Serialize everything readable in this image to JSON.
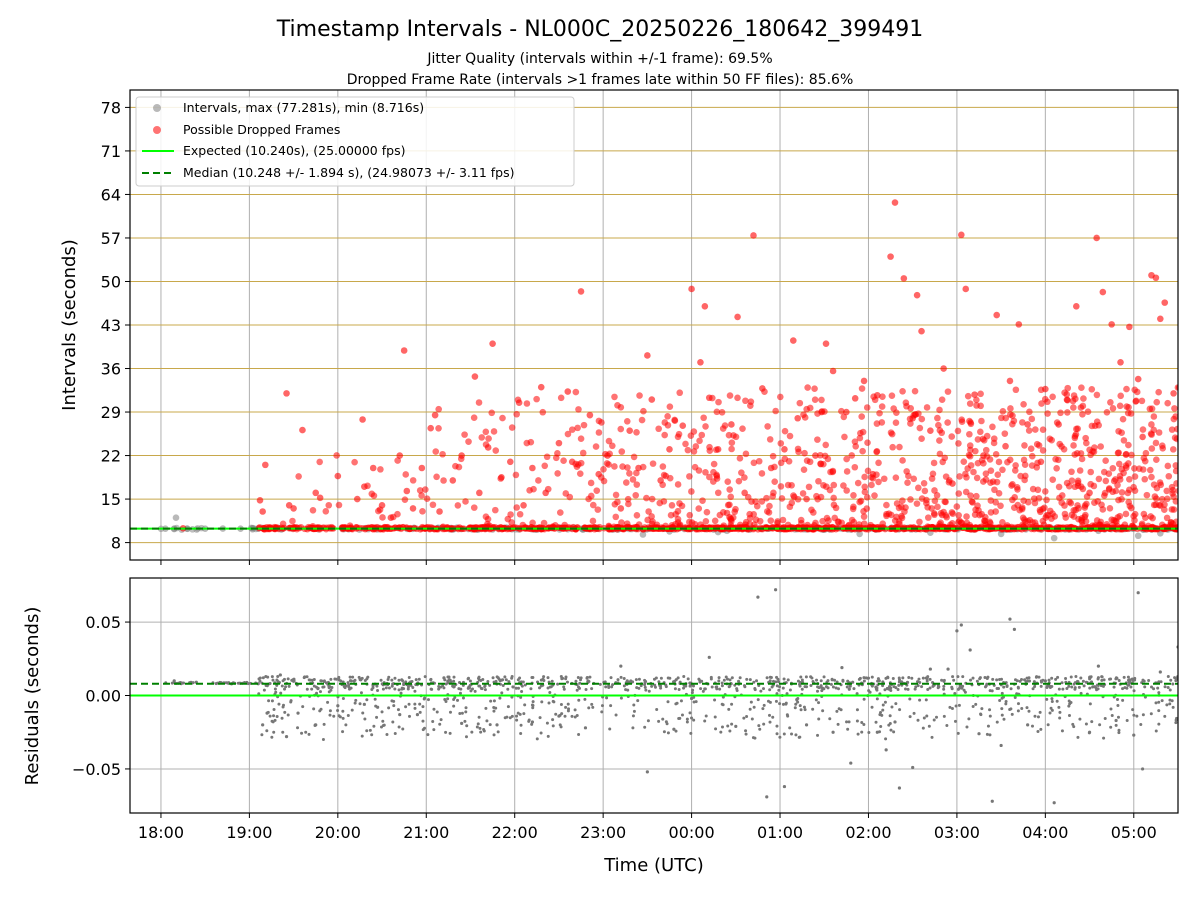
{
  "chart_data": [
    {
      "type": "scatter",
      "title": "Timestamp Intervals - NL000C_20250226_180642_399491",
      "subtitle_lines": [
        "Jitter Quality (intervals within +/-1 frame): 69.5%",
        "Dropped Frame Rate (intervals >1 frames late within 50 FF files): 85.6%"
      ],
      "xlabel": "",
      "ylabel": "Intervals (seconds)",
      "x_range_hours": [
        17.65,
        29.5
      ],
      "ylim": [
        5.2,
        80.8
      ],
      "yticks": [
        8,
        15,
        22,
        29,
        36,
        43,
        50,
        57,
        64,
        71,
        78
      ],
      "grid": true,
      "legend_position": "upper-left",
      "legend": [
        "Intervals, max (77.281s), min (8.716s)",
        "Possible Dropped Frames",
        "Expected (10.240s), (25.00000 fps)",
        "Median (10.248 +/- 1.894 s), (24.98073 +/- 3.11 fps)"
      ],
      "expected_interval": 10.24,
      "median_interval": 10.248,
      "colors": {
        "intervals": "#808080",
        "dropped": "#ff0000",
        "expected": "#00ff00",
        "median": "#008000",
        "hgrid": "#c8a84b",
        "vgrid": "#b0b0b0"
      },
      "series": [
        {
          "name": "Intervals, max (77.281s), min (8.716s)",
          "points": [
            [
              18.05,
              10.24
            ],
            [
              18.15,
              10.25
            ],
            [
              18.17,
              12.0
            ],
            [
              18.3,
              10.22
            ],
            [
              18.5,
              10.24
            ],
            [
              18.7,
              10.26
            ],
            [
              18.9,
              10.24
            ],
            [
              19.1,
              10.23
            ],
            [
              23.45,
              9.3
            ],
            [
              23.75,
              9.8
            ],
            [
              24.3,
              9.7
            ],
            [
              24.4,
              9.9
            ],
            [
              25.9,
              9.4
            ],
            [
              26.7,
              9.6
            ],
            [
              27.5,
              9.4
            ],
            [
              28.1,
              8.72
            ],
            [
              28.6,
              9.9
            ],
            [
              29.05,
              9.1
            ],
            [
              29.3,
              9.5
            ]
          ]
        },
        {
          "name": "Possible Dropped Frames",
          "points": [
            [
              18.25,
              10.3
            ],
            [
              19.12,
              14.8
            ],
            [
              19.15,
              13.0
            ],
            [
              19.18,
              20.5
            ],
            [
              19.42,
              32.0
            ],
            [
              19.45,
              14.0
            ],
            [
              19.5,
              13.5
            ],
            [
              19.6,
              26.1
            ],
            [
              19.75,
              16.0
            ],
            [
              19.8,
              15.2
            ],
            [
              20.0,
              18.7
            ],
            [
              20.22,
              15.0
            ],
            [
              20.28,
              27.8
            ],
            [
              20.3,
              17.0
            ],
            [
              20.4,
              20.0
            ],
            [
              20.5,
              14.0
            ],
            [
              20.6,
              12.0
            ],
            [
              20.7,
              22.0
            ],
            [
              20.75,
              38.9
            ],
            [
              20.78,
              16.3
            ],
            [
              20.85,
              13.5
            ],
            [
              20.95,
              20.0
            ],
            [
              21.05,
              26.4
            ],
            [
              21.1,
              28.5
            ],
            [
              21.15,
              13.0
            ],
            [
              21.3,
              18.0
            ],
            [
              21.4,
              22.0
            ],
            [
              21.55,
              34.7
            ],
            [
              21.6,
              16.0
            ],
            [
              21.7,
              23.3
            ],
            [
              21.75,
              40.0
            ],
            [
              21.85,
              18.5
            ],
            [
              21.95,
              21.0
            ],
            [
              22.05,
              30.5
            ],
            [
              22.1,
              14.0
            ],
            [
              22.2,
              20.0
            ],
            [
              22.3,
              33.0
            ],
            [
              22.35,
              16.0
            ],
            [
              22.5,
              24.0
            ],
            [
              22.6,
              32.3
            ],
            [
              22.65,
              21.0
            ],
            [
              22.75,
              48.4
            ],
            [
              22.85,
              28.5
            ],
            [
              22.95,
              19.0
            ],
            [
              23.05,
              22.0
            ],
            [
              23.2,
              13.5
            ],
            [
              23.3,
              26.0
            ],
            [
              23.4,
              20.0
            ],
            [
              23.5,
              38.1
            ],
            [
              23.55,
              31.0
            ],
            [
              23.65,
              18.0
            ],
            [
              23.75,
              23.0
            ],
            [
              23.9,
              26.8
            ],
            [
              24.0,
              48.8
            ],
            [
              24.1,
              37.0
            ],
            [
              24.15,
              46.0
            ],
            [
              24.2,
              31.3
            ],
            [
              24.3,
              23.0
            ],
            [
              24.45,
              27.0
            ],
            [
              24.52,
              44.3
            ],
            [
              24.6,
              16.0
            ],
            [
              24.7,
              57.4
            ],
            [
              24.8,
              32.8
            ],
            [
              24.9,
              20.0
            ],
            [
              25.05,
              23.0
            ],
            [
              25.15,
              40.5
            ],
            [
              25.2,
              28.0
            ],
            [
              25.3,
              15.0
            ],
            [
              25.4,
              22.0
            ],
            [
              25.52,
              40.0
            ],
            [
              25.6,
              35.6
            ],
            [
              25.75,
              29.0
            ],
            [
              25.85,
              31.2
            ],
            [
              25.95,
              34.0
            ],
            [
              26.05,
              19.0
            ],
            [
              26.1,
              31.7
            ],
            [
              26.25,
              54.0
            ],
            [
              26.3,
              62.7
            ],
            [
              26.4,
              50.5
            ],
            [
              26.5,
              28.0
            ],
            [
              26.55,
              47.8
            ],
            [
              26.6,
              42.0
            ],
            [
              26.7,
              26.0
            ],
            [
              26.85,
              36.0
            ],
            [
              26.95,
              17.5
            ],
            [
              27.05,
              57.5
            ],
            [
              27.1,
              48.8
            ],
            [
              27.2,
              31.8
            ],
            [
              27.3,
              22.0
            ],
            [
              27.45,
              44.6
            ],
            [
              27.55,
              23.5
            ],
            [
              27.6,
              34.0
            ],
            [
              27.7,
              43.1
            ],
            [
              27.8,
              27.0
            ],
            [
              27.95,
              21.0
            ],
            [
              28.0,
              32.7
            ],
            [
              28.15,
              27.0
            ],
            [
              28.25,
              30.9
            ],
            [
              28.35,
              46.0
            ],
            [
              28.5,
              16.0
            ],
            [
              28.58,
              57.0
            ],
            [
              28.65,
              48.3
            ],
            [
              28.75,
              43.1
            ],
            [
              28.85,
              37.0
            ],
            [
              28.95,
              42.7
            ],
            [
              29.05,
              34.3
            ],
            [
              29.1,
              25.0
            ],
            [
              29.2,
              51.0
            ],
            [
              29.25,
              50.6
            ],
            [
              29.3,
              44.0
            ],
            [
              29.35,
              46.6
            ],
            [
              29.45,
              32.0
            ],
            [
              29.55,
              55.7
            ],
            [
              29.65,
              42.5
            ],
            [
              29.7,
              40.1
            ],
            [
              29.75,
              39.7
            ],
            [
              29.8,
              33.0
            ],
            [
              29.9,
              30.0
            ],
            [
              30.0,
              37.0
            ],
            [
              30.1,
              28.0
            ],
            [
              30.25,
              25.5
            ],
            [
              30.35,
              32.5
            ],
            [
              30.45,
              21.6
            ]
          ]
        },
        {
          "name": "Expected (10.240s), (25.00000 fps)",
          "y": 10.24
        },
        {
          "name": "Median (10.248 +/- 1.894 s), (24.98073 +/- 3.11 fps)",
          "y": 10.248
        }
      ],
      "dense_band": {
        "dropped_y_range": [
          10.0,
          33.0
        ],
        "dropped_hours_range": [
          19.1,
          29.5
        ],
        "baseline_hours_range": [
          17.65,
          29.5
        ],
        "baseline_y": 10.24
      }
    },
    {
      "type": "scatter",
      "title": "",
      "xlabel": "Time (UTC)",
      "ylabel": "Residuals (seconds)",
      "x_range_hours": [
        17.65,
        29.5
      ],
      "ylim": [
        -0.08,
        0.08
      ],
      "yticks": [
        -0.05,
        0.0,
        0.05
      ],
      "ytick_labels": [
        "−0.05",
        "0.00",
        "0.05"
      ],
      "xticks_hours": [
        18,
        19,
        20,
        21,
        22,
        23,
        24,
        25,
        26,
        27,
        28,
        29
      ],
      "xtick_labels": [
        "18:00",
        "19:00",
        "20:00",
        "21:00",
        "22:00",
        "23:00",
        "00:00",
        "01:00",
        "02:00",
        "03:00",
        "04:00",
        "05:00"
      ],
      "grid": true,
      "zero_line": 0.0,
      "median_residual": 0.008,
      "series": [
        {
          "name": "Residuals",
          "points": [
            [
              18.15,
              0.01
            ],
            [
              18.4,
              0.009
            ],
            [
              18.8,
              0.008
            ],
            [
              19.1,
              0.008
            ],
            [
              19.15,
              -0.02
            ],
            [
              19.2,
              -0.012
            ],
            [
              19.35,
              0.014
            ],
            [
              19.42,
              -0.028
            ],
            [
              19.55,
              -0.012
            ],
            [
              19.75,
              -0.02
            ],
            [
              20.0,
              -0.007
            ],
            [
              20.3,
              -0.006
            ],
            [
              20.45,
              -0.008
            ],
            [
              20.7,
              -0.013
            ],
            [
              20.9,
              -0.013
            ],
            [
              21.2,
              0.012
            ],
            [
              21.4,
              -0.019
            ],
            [
              21.8,
              -0.02
            ],
            [
              22.2,
              -0.018
            ],
            [
              22.5,
              -0.014
            ],
            [
              22.8,
              -0.022
            ],
            [
              23.2,
              0.02
            ],
            [
              23.5,
              -0.052
            ],
            [
              23.8,
              -0.023
            ],
            [
              24.0,
              -0.002
            ],
            [
              24.2,
              0.026
            ],
            [
              24.5,
              -0.021
            ],
            [
              24.75,
              0.067
            ],
            [
              24.85,
              -0.069
            ],
            [
              24.95,
              0.072
            ],
            [
              25.05,
              -0.062
            ],
            [
              25.3,
              -0.02
            ],
            [
              25.6,
              -0.025
            ],
            [
              25.7,
              0.019
            ],
            [
              25.8,
              -0.046
            ],
            [
              26.1,
              -0.025
            ],
            [
              26.2,
              -0.037
            ],
            [
              26.3,
              -0.018
            ],
            [
              26.35,
              -0.063
            ],
            [
              26.5,
              -0.049
            ],
            [
              26.7,
              0.018
            ],
            [
              26.9,
              0.018
            ],
            [
              27.0,
              0.044
            ],
            [
              27.05,
              0.048
            ],
            [
              27.15,
              0.031
            ],
            [
              27.25,
              -0.026
            ],
            [
              27.4,
              -0.072
            ],
            [
              27.5,
              -0.034
            ],
            [
              27.6,
              0.052
            ],
            [
              27.65,
              0.045
            ],
            [
              27.8,
              -0.02
            ],
            [
              28.0,
              0.01
            ],
            [
              28.1,
              -0.073
            ],
            [
              28.5,
              -0.025
            ],
            [
              28.6,
              0.02
            ],
            [
              28.8,
              -0.017
            ],
            [
              29.0,
              -0.027
            ],
            [
              29.05,
              0.07
            ],
            [
              29.1,
              -0.05
            ],
            [
              29.3,
              0.016
            ],
            [
              29.5,
              0.033
            ],
            [
              29.7,
              0.015
            ],
            [
              30.0,
              -0.017
            ],
            [
              30.3,
              -0.068
            ],
            [
              30.4,
              0.006
            ]
          ]
        }
      ],
      "dense_band": {
        "y_range": [
          -0.03,
          0.013
        ],
        "hours_range": [
          19.1,
          29.5
        ]
      }
    }
  ]
}
